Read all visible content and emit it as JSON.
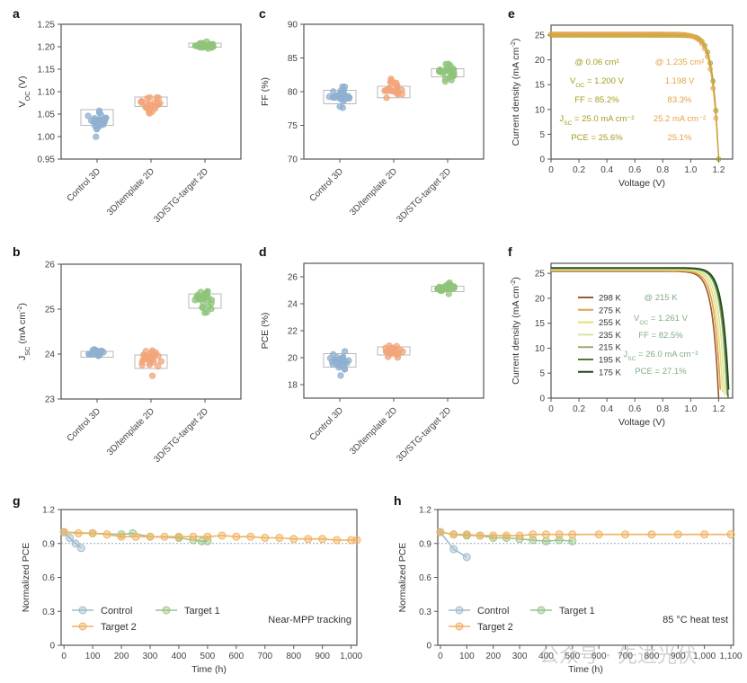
{
  "figure": {
    "panel_labels": [
      "a",
      "b",
      "c",
      "d",
      "e",
      "f",
      "g",
      "h"
    ],
    "watermark": "公众号 · 先进光伏"
  },
  "colors": {
    "control": "#8fb0d0",
    "template": "#f2a57a",
    "stg": "#8fc47a",
    "e_small": "#a59c1e",
    "e_large": "#e3a54a",
    "g_control": "#9dbdcc",
    "g_target1": "#9cc48a",
    "g_target2": "#f0b260",
    "f_temps": [
      "#9a5a2a",
      "#e0a050",
      "#e6e070",
      "#d8e4a0",
      "#9aac70",
      "#4e7a3a",
      "#1f4a1a"
    ]
  },
  "chart_data": [
    {
      "id": "a",
      "type": "box-scatter",
      "ylabel": "V_OC (V)",
      "categories": [
        "Control 3D",
        "3D/template 2D",
        "3D/STG-target 2D"
      ],
      "ylim": [
        0.95,
        1.25
      ],
      "yticks": [
        0.95,
        1.0,
        1.05,
        1.1,
        1.15,
        1.2,
        1.25
      ],
      "ytick_labels": [
        "0.95",
        "1.00",
        "1.05",
        "1.10",
        "1.15",
        "1.20",
        "1.25"
      ],
      "boxes": [
        {
          "q1": 1.025,
          "q3": 1.06,
          "min": 1.0,
          "max": 1.07
        },
        {
          "q1": 1.067,
          "q3": 1.088,
          "min": 1.05,
          "max": 1.092
        },
        {
          "q1": 1.199,
          "q3": 1.208,
          "min": 1.193,
          "max": 1.213
        }
      ]
    },
    {
      "id": "c",
      "type": "box-scatter",
      "ylabel": "FF (%)",
      "categories": [
        "Control 3D",
        "3D/template 2D",
        "3D/STG-target 2D"
      ],
      "ylim": [
        70,
        90
      ],
      "yticks": [
        70,
        75,
        80,
        85,
        90
      ],
      "ytick_labels": [
        "70",
        "75",
        "80",
        "85",
        "90"
      ],
      "boxes": [
        {
          "q1": 78.2,
          "q3": 80.2,
          "min": 77.2,
          "max": 81.3
        },
        {
          "q1": 79.1,
          "q3": 80.8,
          "min": 78.2,
          "max": 82.0
        },
        {
          "q1": 82.2,
          "q3": 83.4,
          "min": 81.6,
          "max": 84.5
        }
      ]
    },
    {
      "id": "b",
      "type": "box-scatter",
      "ylabel": "J_SC (mA cm^-2)",
      "categories": [
        "Control 3D",
        "3D/template 2D",
        "3D/STG-target 2D"
      ],
      "ylim": [
        23,
        26
      ],
      "yticks": [
        23,
        24,
        25,
        26
      ],
      "ytick_labels": [
        "23",
        "24",
        "25",
        "26"
      ],
      "boxes": [
        {
          "q1": 23.93,
          "q3": 24.06,
          "min": 23.88,
          "max": 24.15
        },
        {
          "q1": 23.68,
          "q3": 23.98,
          "min": 23.48,
          "max": 24.25
        },
        {
          "q1": 25.02,
          "q3": 25.34,
          "min": 24.92,
          "max": 25.5
        }
      ]
    },
    {
      "id": "d",
      "type": "box-scatter",
      "ylabel": "PCE (%)",
      "categories": [
        "Control 3D",
        "3D/template 2D",
        "3D/STG-target 2D"
      ],
      "ylim": [
        17,
        27
      ],
      "yticks": [
        18,
        20,
        22,
        24,
        26
      ],
      "ytick_labels": [
        "18",
        "20",
        "22",
        "24",
        "26"
      ],
      "boxes": [
        {
          "q1": 19.3,
          "q3": 20.3,
          "min": 18.7,
          "max": 20.7
        },
        {
          "q1": 20.2,
          "q3": 20.8,
          "min": 19.8,
          "max": 21.1
        },
        {
          "q1": 24.9,
          "q3": 25.3,
          "min": 24.7,
          "max": 25.6
        }
      ]
    },
    {
      "id": "e",
      "type": "line",
      "xlabel": "Voltage (V)",
      "ylabel": "Current density (mA cm^-2)",
      "xlim": [
        0,
        1.3
      ],
      "ylim": [
        0,
        27
      ],
      "xticks": [
        0,
        0.2,
        0.4,
        0.6,
        0.8,
        1.0,
        1.2
      ],
      "xtick_labels": [
        "0",
        "0.2",
        "0.4",
        "0.6",
        "0.8",
        "1.0",
        "1.2"
      ],
      "yticks": [
        0,
        5,
        10,
        15,
        20,
        25
      ],
      "ytick_labels": [
        "0",
        "5",
        "10",
        "15",
        "20",
        "25"
      ],
      "series": [
        {
          "name": "@ 0.06 cm²",
          "jsc": 25.0,
          "voc": 1.2,
          "ff": 85.2,
          "pce": 25.6
        },
        {
          "name": "@ 1.235 cm²",
          "jsc": 25.2,
          "voc": 1.198,
          "ff": 83.3,
          "pce": 25.1
        }
      ],
      "annotations": {
        "col1": [
          "@ 0.06 cm²",
          "V_OC = 1.200 V",
          "FF = 85.2%",
          "J_SC = 25.0 mA cm⁻²",
          "PCE = 25.6%"
        ],
        "col2": [
          "@ 1.235 cm²",
          "1.198 V",
          "83.3%",
          "25.2 mA cm⁻²",
          "25.1%"
        ]
      }
    },
    {
      "id": "f",
      "type": "line",
      "xlabel": "Voltage (V)",
      "ylabel": "Current density (mA cm^-2)",
      "xlim": [
        0,
        1.3
      ],
      "ylim": [
        0,
        27
      ],
      "xticks": [
        0,
        0.2,
        0.4,
        0.6,
        0.8,
        1.0,
        1.2
      ],
      "xtick_labels": [
        "0",
        "0.2",
        "0.4",
        "0.6",
        "0.8",
        "1.0",
        "1.2"
      ],
      "yticks": [
        0,
        5,
        10,
        15,
        20,
        25
      ],
      "ytick_labels": [
        "0",
        "5",
        "10",
        "15",
        "20",
        "25"
      ],
      "series": [
        {
          "name": "298 K",
          "jsc": 25.4,
          "voc": 1.2
        },
        {
          "name": "275 K",
          "jsc": 25.5,
          "voc": 1.215
        },
        {
          "name": "255 K",
          "jsc": 25.7,
          "voc": 1.23
        },
        {
          "name": "235 K",
          "jsc": 25.8,
          "voc": 1.245
        },
        {
          "name": "215 K",
          "jsc": 26.0,
          "voc": 1.261
        },
        {
          "name": "195 K",
          "jsc": 26.0,
          "voc": 1.268
        },
        {
          "name": "175 K",
          "jsc": 26.1,
          "voc": 1.275
        }
      ],
      "annotations": [
        "@ 215 K",
        "V_OC = 1.261 V",
        "FF = 82.5%",
        "J_SC = 26.0 mA cm⁻²",
        "PCE = 27.1%"
      ]
    },
    {
      "id": "g",
      "type": "line",
      "xlabel": "Time (h)",
      "ylabel": "Normalized PCE",
      "xlim": [
        -10,
        1020
      ],
      "ylim": [
        0,
        1.2
      ],
      "xticks": [
        0,
        100,
        200,
        300,
        400,
        500,
        600,
        700,
        800,
        900,
        1000
      ],
      "xtick_labels": [
        "0",
        "100",
        "200",
        "300",
        "400",
        "500",
        "600",
        "700",
        "800",
        "900",
        "1,000"
      ],
      "yticks": [
        0,
        0.3,
        0.6,
        0.9,
        1.2
      ],
      "ytick_labels": [
        "0",
        "0.3",
        "0.6",
        "0.9",
        "1.2"
      ],
      "reference_line": 0.9,
      "note": "Near-MPP tracking",
      "series": [
        {
          "name": "Control",
          "x": [
            0,
            20,
            40,
            60
          ],
          "y": [
            1.0,
            0.95,
            0.9,
            0.86
          ]
        },
        {
          "name": "Target 1",
          "x": [
            0,
            100,
            200,
            240,
            300,
            400,
            450,
            480,
            500
          ],
          "y": [
            1.0,
            0.99,
            0.98,
            0.99,
            0.96,
            0.95,
            0.93,
            0.92,
            0.92
          ]
        },
        {
          "name": "Target 2",
          "x": [
            0,
            50,
            100,
            150,
            200,
            250,
            300,
            350,
            400,
            450,
            500,
            550,
            600,
            650,
            700,
            750,
            800,
            850,
            900,
            950,
            1000,
            1020
          ],
          "y": [
            1.0,
            0.99,
            0.99,
            0.98,
            0.96,
            0.96,
            0.96,
            0.96,
            0.96,
            0.96,
            0.96,
            0.97,
            0.96,
            0.96,
            0.95,
            0.95,
            0.94,
            0.94,
            0.94,
            0.93,
            0.93,
            0.93
          ]
        }
      ]
    },
    {
      "id": "h",
      "type": "line",
      "xlabel": "Time (h)",
      "ylabel": "Normalized PCE",
      "xlim": [
        -10,
        1110
      ],
      "ylim": [
        0,
        1.2
      ],
      "xticks": [
        0,
        100,
        200,
        300,
        400,
        500,
        600,
        700,
        800,
        900,
        1000,
        1100
      ],
      "xtick_labels": [
        "0",
        "100",
        "200",
        "300",
        "400",
        "500",
        "600",
        "700",
        "800",
        "900",
        "1,000",
        "1,100"
      ],
      "yticks": [
        0,
        0.3,
        0.6,
        0.9,
        1.2
      ],
      "ytick_labels": [
        "0",
        "0.3",
        "0.6",
        "0.9",
        "1.2"
      ],
      "reference_line": 0.9,
      "note": "85 °C heat test",
      "series": [
        {
          "name": "Control",
          "x": [
            0,
            50,
            100
          ],
          "y": [
            1.0,
            0.85,
            0.78
          ]
        },
        {
          "name": "Target 1",
          "x": [
            0,
            50,
            100,
            150,
            200,
            250,
            300,
            350,
            400,
            450,
            500
          ],
          "y": [
            1.0,
            0.98,
            0.97,
            0.97,
            0.95,
            0.95,
            0.94,
            0.93,
            0.92,
            0.93,
            0.92
          ]
        },
        {
          "name": "Target 2",
          "x": [
            0,
            50,
            100,
            150,
            200,
            250,
            300,
            350,
            400,
            450,
            500,
            600,
            700,
            800,
            900,
            1000,
            1100
          ],
          "y": [
            1.0,
            0.98,
            0.98,
            0.97,
            0.97,
            0.97,
            0.97,
            0.98,
            0.98,
            0.98,
            0.98,
            0.98,
            0.98,
            0.98,
            0.98,
            0.98,
            0.98
          ]
        }
      ]
    }
  ]
}
